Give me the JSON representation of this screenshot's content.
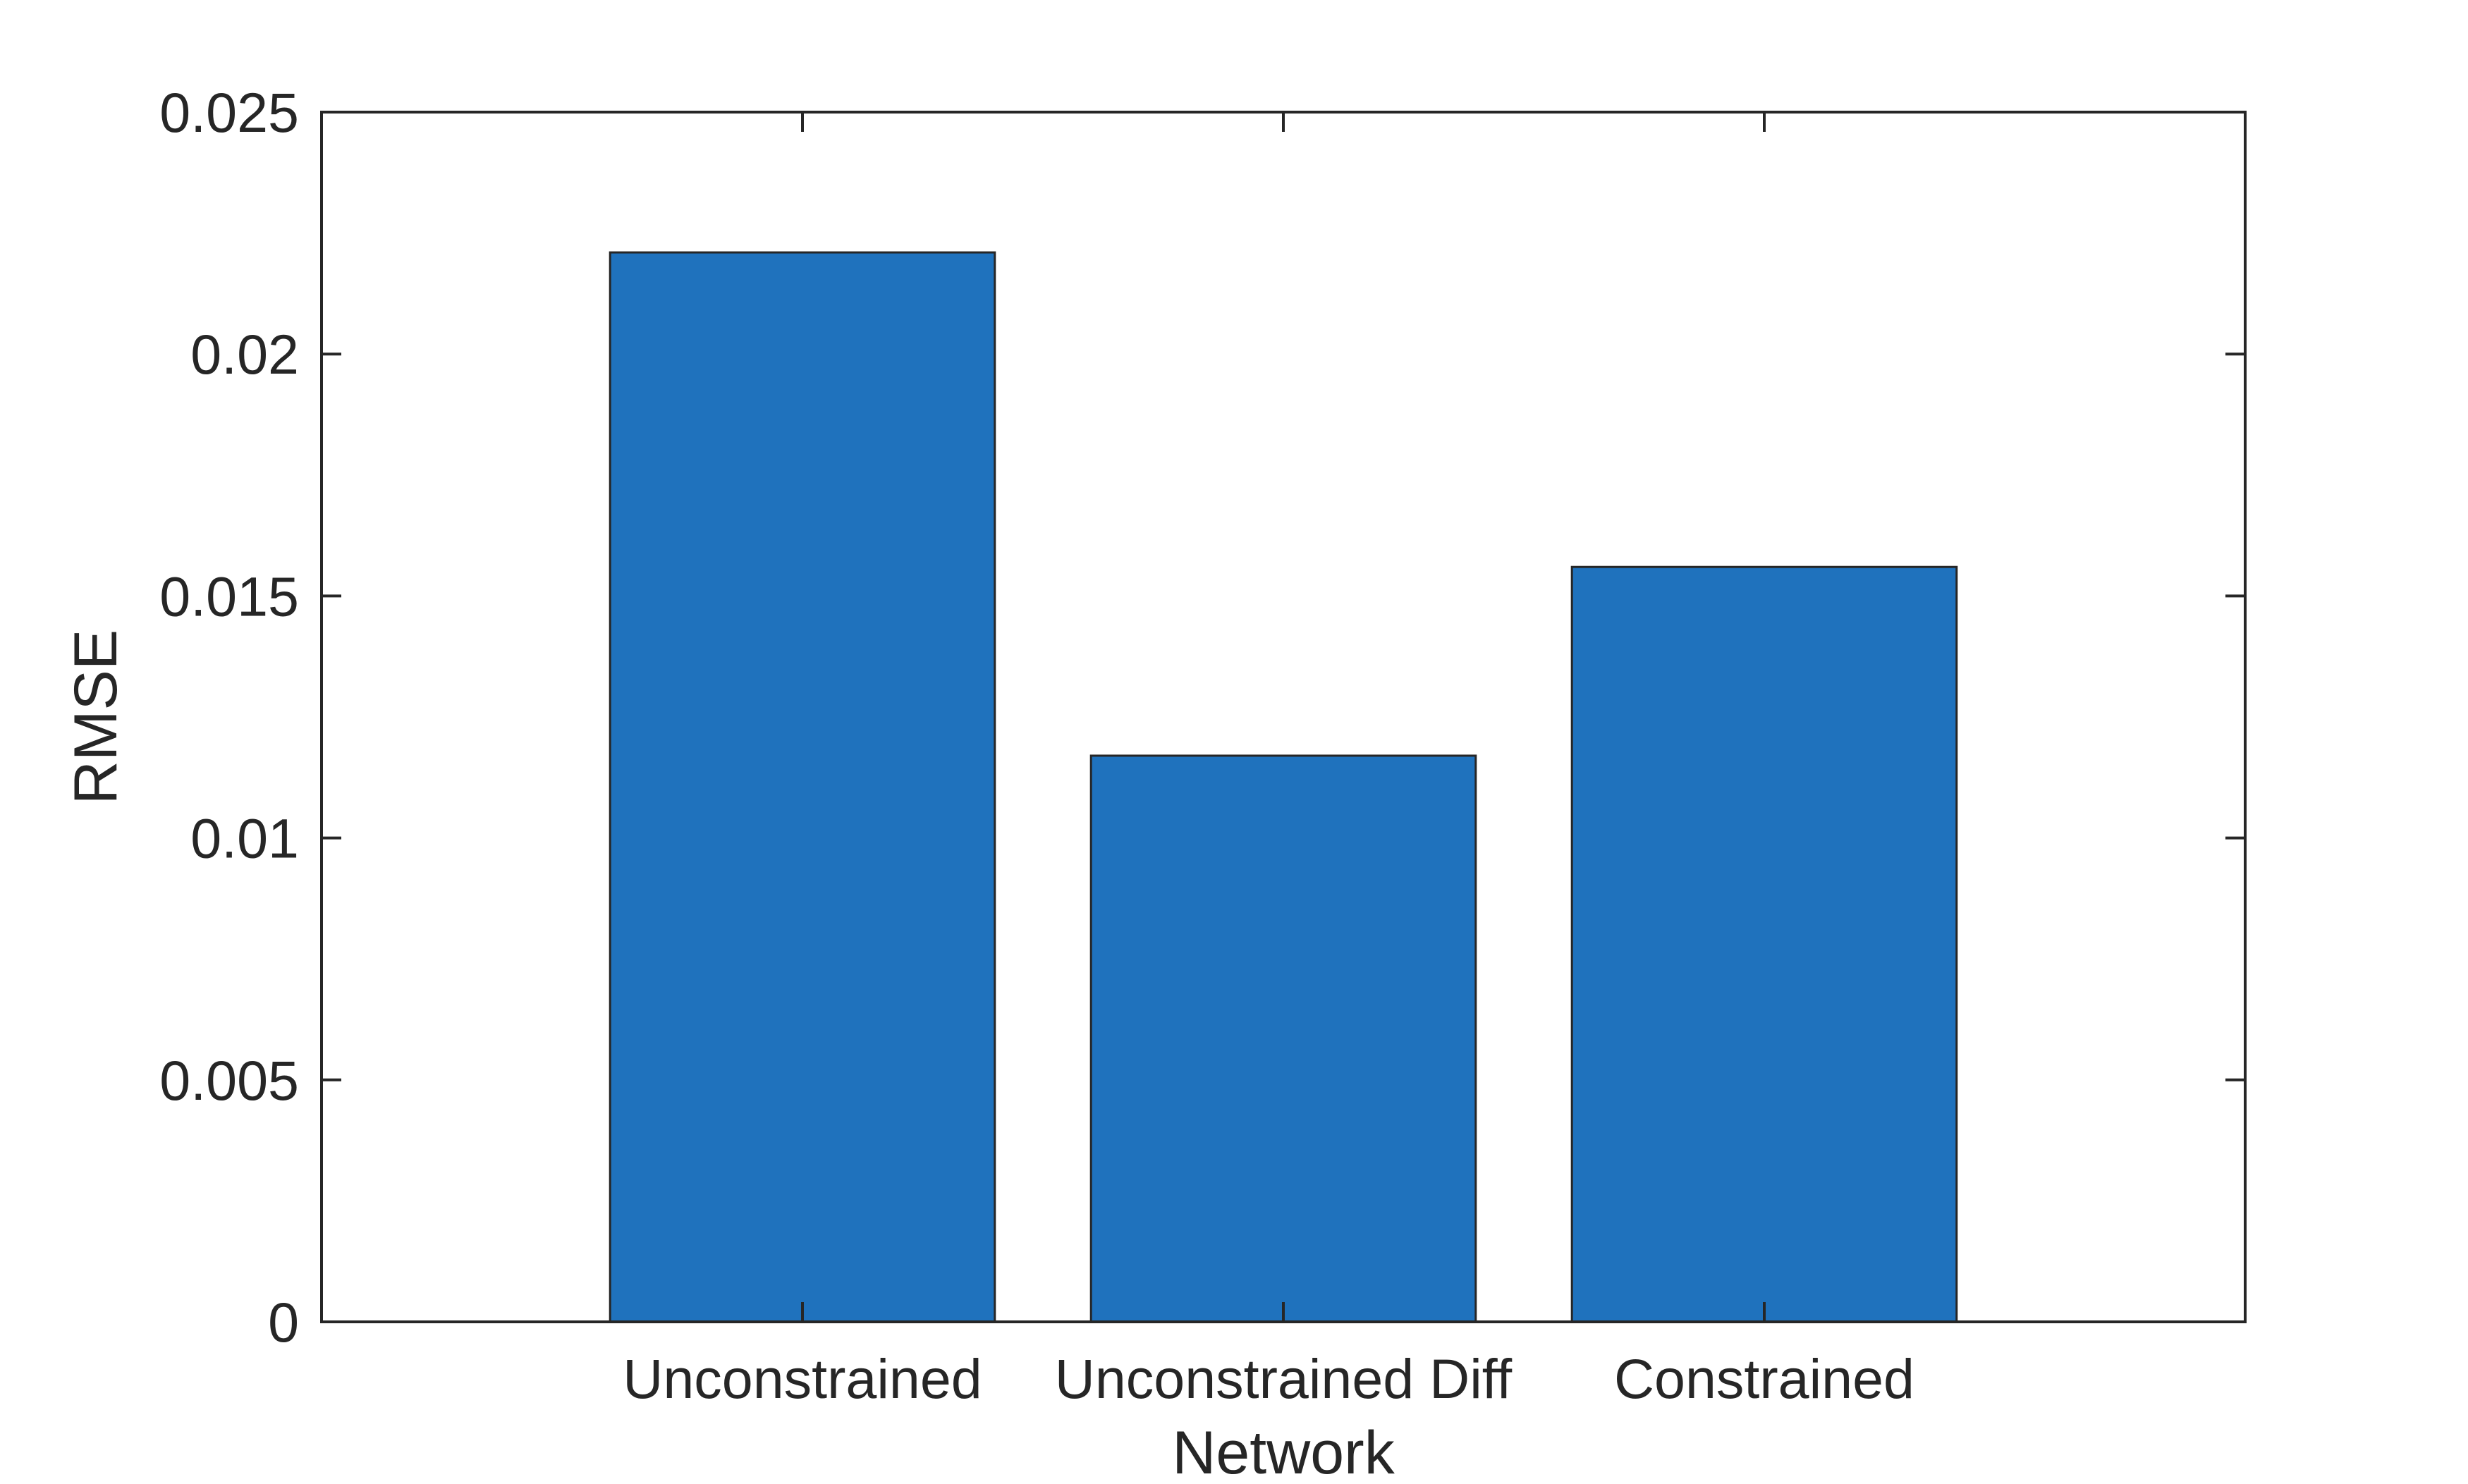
{
  "chart_data": {
    "type": "bar",
    "categories": [
      "Unconstrained",
      "Unconstrained Diff",
      "Constrained"
    ],
    "values": [
      0.0221,
      0.0117,
      0.0156
    ],
    "title": "",
    "xlabel": "Network",
    "ylabel": "RMSE",
    "ylim": [
      0,
      0.025
    ],
    "yticks": [
      "0",
      "0.005",
      "0.01",
      "0.015",
      "0.02",
      "0.025"
    ],
    "grid": false,
    "legend": "none",
    "bar_color": "#1f72bd",
    "edge_color": "#262626",
    "axis_color": "#262626"
  }
}
